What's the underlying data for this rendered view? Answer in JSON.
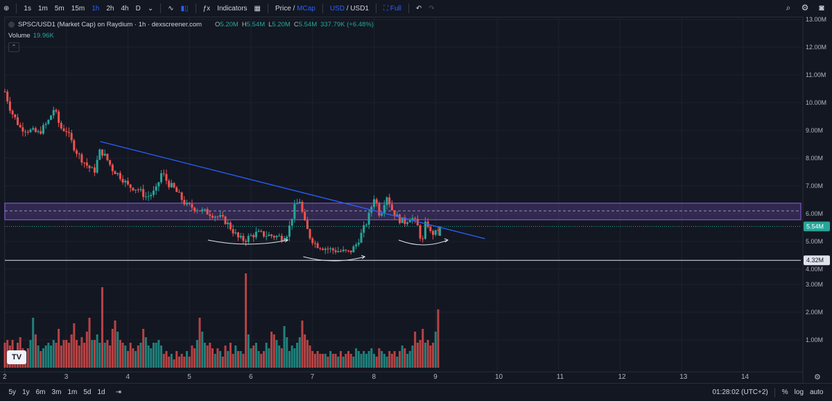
{
  "toolbar": {
    "intervals": [
      "1s",
      "1m",
      "5m",
      "15m",
      "1h",
      "2h",
      "4h",
      "D"
    ],
    "active_interval": "1h",
    "indicators_label": "Indicators",
    "price_label": "Price",
    "mcap_label": "MCap",
    "usd_label": "USD",
    "usd1_label": "USD1",
    "full_label": "Full"
  },
  "legend": {
    "symbol": "SPSC/USD1 (Market Cap) on Raydium · 1h · dexscreener.com",
    "o_label": "O",
    "o_value": "5.20M",
    "h_label": "H",
    "h_value": "5.54M",
    "l_label": "L",
    "l_value": "5.20M",
    "c_label": "C",
    "c_value": "5.54M",
    "change": "337.79K (+6.48%)",
    "volume_label": "Volume",
    "volume_value": "19.96K"
  },
  "bottom_bar": {
    "ranges": [
      "5y",
      "1y",
      "6m",
      "3m",
      "1m",
      "5d",
      "1d"
    ],
    "time": "01:28:02 (UTC+2)",
    "percent": "%",
    "log": "log",
    "auto": "auto"
  },
  "colors": {
    "up": "#26a69a",
    "down": "#ef5350",
    "trendline": "#2962ff",
    "zone": "#7e57c2",
    "background": "#131722"
  },
  "chart_data": {
    "type": "candlestick",
    "y_axis_ticks": [
      "13.00M",
      "12.00M",
      "11.00M",
      "10.00M",
      "9.00M",
      "8.00M",
      "7.00M",
      "6.00M",
      "5.00M",
      "4.00M"
    ],
    "y_axis_values": [
      13,
      12,
      11,
      10,
      9,
      8,
      7,
      6,
      5,
      4
    ],
    "volume_ticks": [
      "3.00M",
      "2.00M",
      "1.00M"
    ],
    "volume_values": [
      3,
      2,
      1
    ],
    "x_axis_ticks": [
      "2",
      "3",
      "4",
      "5",
      "6",
      "7",
      "8",
      "9",
      "10",
      "11",
      "12",
      "13",
      "14"
    ],
    "x_axis_values": [
      2,
      3,
      4,
      5,
      6,
      7,
      8,
      9,
      10,
      11,
      12,
      13,
      14
    ],
    "last_price_label": "5.54M",
    "last_price": 5.54,
    "support_label": "4.32M",
    "support_value": 4.32,
    "zone_range": [
      5.78,
      6.38
    ],
    "zone_mid": 6.1,
    "trendline": {
      "x": [
        3.55,
        9.8
      ],
      "y": [
        8.6,
        5.1
      ]
    },
    "ylim": [
      4.0,
      13.2
    ],
    "xlim": [
      2.0,
      14.9
    ],
    "price_path": [
      [
        2.0,
        10.4
      ],
      [
        2.1,
        9.7
      ],
      [
        2.25,
        9.1
      ],
      [
        2.4,
        9.0
      ],
      [
        2.55,
        8.9
      ],
      [
        2.7,
        9.3
      ],
      [
        2.8,
        9.8
      ],
      [
        2.9,
        9.1
      ],
      [
        3.0,
        9.0
      ],
      [
        3.1,
        8.5
      ],
      [
        3.2,
        8.1
      ],
      [
        3.35,
        7.7
      ],
      [
        3.45,
        7.5
      ],
      [
        3.55,
        8.3
      ],
      [
        3.65,
        8.0
      ],
      [
        3.75,
        7.6
      ],
      [
        3.9,
        7.3
      ],
      [
        4.0,
        7.0
      ],
      [
        4.15,
        6.9
      ],
      [
        4.3,
        6.6
      ],
      [
        4.45,
        6.8
      ],
      [
        4.55,
        7.5
      ],
      [
        4.65,
        7.1
      ],
      [
        4.75,
        6.9
      ],
      [
        4.85,
        6.6
      ],
      [
        4.95,
        6.3
      ],
      [
        5.1,
        6.2
      ],
      [
        5.2,
        6.1
      ],
      [
        5.35,
        6.0
      ],
      [
        5.5,
        5.85
      ],
      [
        5.6,
        5.7
      ],
      [
        5.7,
        5.4
      ],
      [
        5.8,
        5.1
      ],
      [
        5.9,
        5.05
      ],
      [
        6.0,
        5.2
      ],
      [
        6.1,
        5.3
      ],
      [
        6.2,
        5.25
      ],
      [
        6.35,
        5.2
      ],
      [
        6.5,
        5.15
      ],
      [
        6.6,
        5.3
      ],
      [
        6.7,
        6.2
      ],
      [
        6.8,
        6.5
      ],
      [
        6.85,
        5.8
      ],
      [
        6.95,
        5.2
      ],
      [
        7.05,
        4.9
      ],
      [
        7.15,
        4.8
      ],
      [
        7.3,
        4.7
      ],
      [
        7.45,
        4.65
      ],
      [
        7.6,
        4.6
      ],
      [
        7.7,
        4.85
      ],
      [
        7.8,
        5.3
      ],
      [
        7.9,
        5.8
      ],
      [
        8.0,
        6.6
      ],
      [
        8.05,
        6.3
      ],
      [
        8.1,
        5.9
      ],
      [
        8.2,
        6.7
      ],
      [
        8.3,
        6.1
      ],
      [
        8.4,
        5.8
      ],
      [
        8.5,
        5.7
      ],
      [
        8.6,
        5.9
      ],
      [
        8.7,
        5.6
      ],
      [
        8.75,
        5.2
      ],
      [
        8.8,
        5.0
      ],
      [
        8.85,
        5.9
      ],
      [
        8.9,
        5.3
      ],
      [
        9.0,
        5.3
      ],
      [
        9.07,
        5.54
      ]
    ],
    "volume_profile": [
      0.9,
      1.0,
      0.8,
      1.0,
      0.6,
      0.9,
      1.1,
      0.7,
      0.5,
      0.7,
      1.0,
      1.8,
      1.2,
      0.8,
      0.6,
      0.7,
      0.8,
      0.9,
      0.8,
      1.0,
      0.9,
      1.4,
      0.8,
      1.0,
      1.0,
      0.9,
      1.2,
      1.6,
      1.0,
      0.8,
      1.1,
      0.9,
      1.3,
      1.8,
      1.0,
      1.0,
      1.2,
      0.9,
      2.9,
      0.9,
      1.0,
      0.8,
      1.4,
      1.7,
      1.3,
      1.0,
      0.9,
      0.8,
      0.6,
      0.9,
      0.7,
      0.6,
      0.8,
      0.9,
      1.4,
      1.1,
      0.8,
      0.7,
      0.9,
      0.9,
      1.0,
      0.8,
      0.5,
      0.6,
      0.4,
      0.5,
      0.3,
      0.6,
      0.4,
      0.5,
      0.4,
      0.6,
      0.4,
      0.8,
      0.7,
      1.0,
      1.8,
      1.3,
      0.9,
      0.8,
      0.9,
      0.7,
      0.5,
      0.7,
      0.6,
      0.4,
      0.8,
      0.6,
      0.9,
      0.5,
      0.8,
      0.6,
      0.6,
      0.5,
      3.4,
      1.2,
      0.7,
      0.8,
      0.9,
      0.6,
      0.5,
      0.6,
      0.9,
      0.7,
      1.3,
      1.2,
      1.0,
      0.8,
      0.7,
      1.5,
      1.1,
      0.6,
      0.8,
      0.7,
      0.9,
      1.1,
      1.7,
      1.2,
      1.0,
      0.8,
      0.6,
      0.5,
      0.6,
      0.5,
      0.5,
      0.5,
      0.4,
      0.6,
      0.5,
      0.5,
      0.4,
      0.6,
      0.4,
      0.5,
      0.6,
      0.5,
      0.4,
      0.7,
      0.6,
      0.5,
      0.6,
      0.5,
      0.6,
      0.7,
      0.5,
      0.4,
      0.7,
      0.6,
      0.5,
      0.4,
      0.6,
      0.5,
      0.6,
      0.4,
      0.6,
      0.8,
      0.7,
      0.5,
      0.6,
      0.8,
      1.3,
      0.9,
      1.0,
      1.4,
      0.9,
      1.0,
      0.8,
      0.9,
      1.3,
      2.1,
      1.6,
      2.7,
      2.3,
      1.9,
      1.8,
      1.4,
      2.0,
      1.4,
      1.0,
      1.7,
      2.0,
      1.3,
      1.1,
      0.9,
      0.7,
      0.8,
      0.7,
      0.8,
      0.6,
      0.7,
      1.0,
      0.9,
      0.6,
      0.7,
      0.6,
      0.8,
      0.7,
      0.6,
      0.9,
      0.7,
      0.8,
      0.6,
      3.7,
      1.8,
      1.1,
      0.9,
      0.7,
      0.6,
      0.7,
      0.5,
      0.4
    ]
  }
}
